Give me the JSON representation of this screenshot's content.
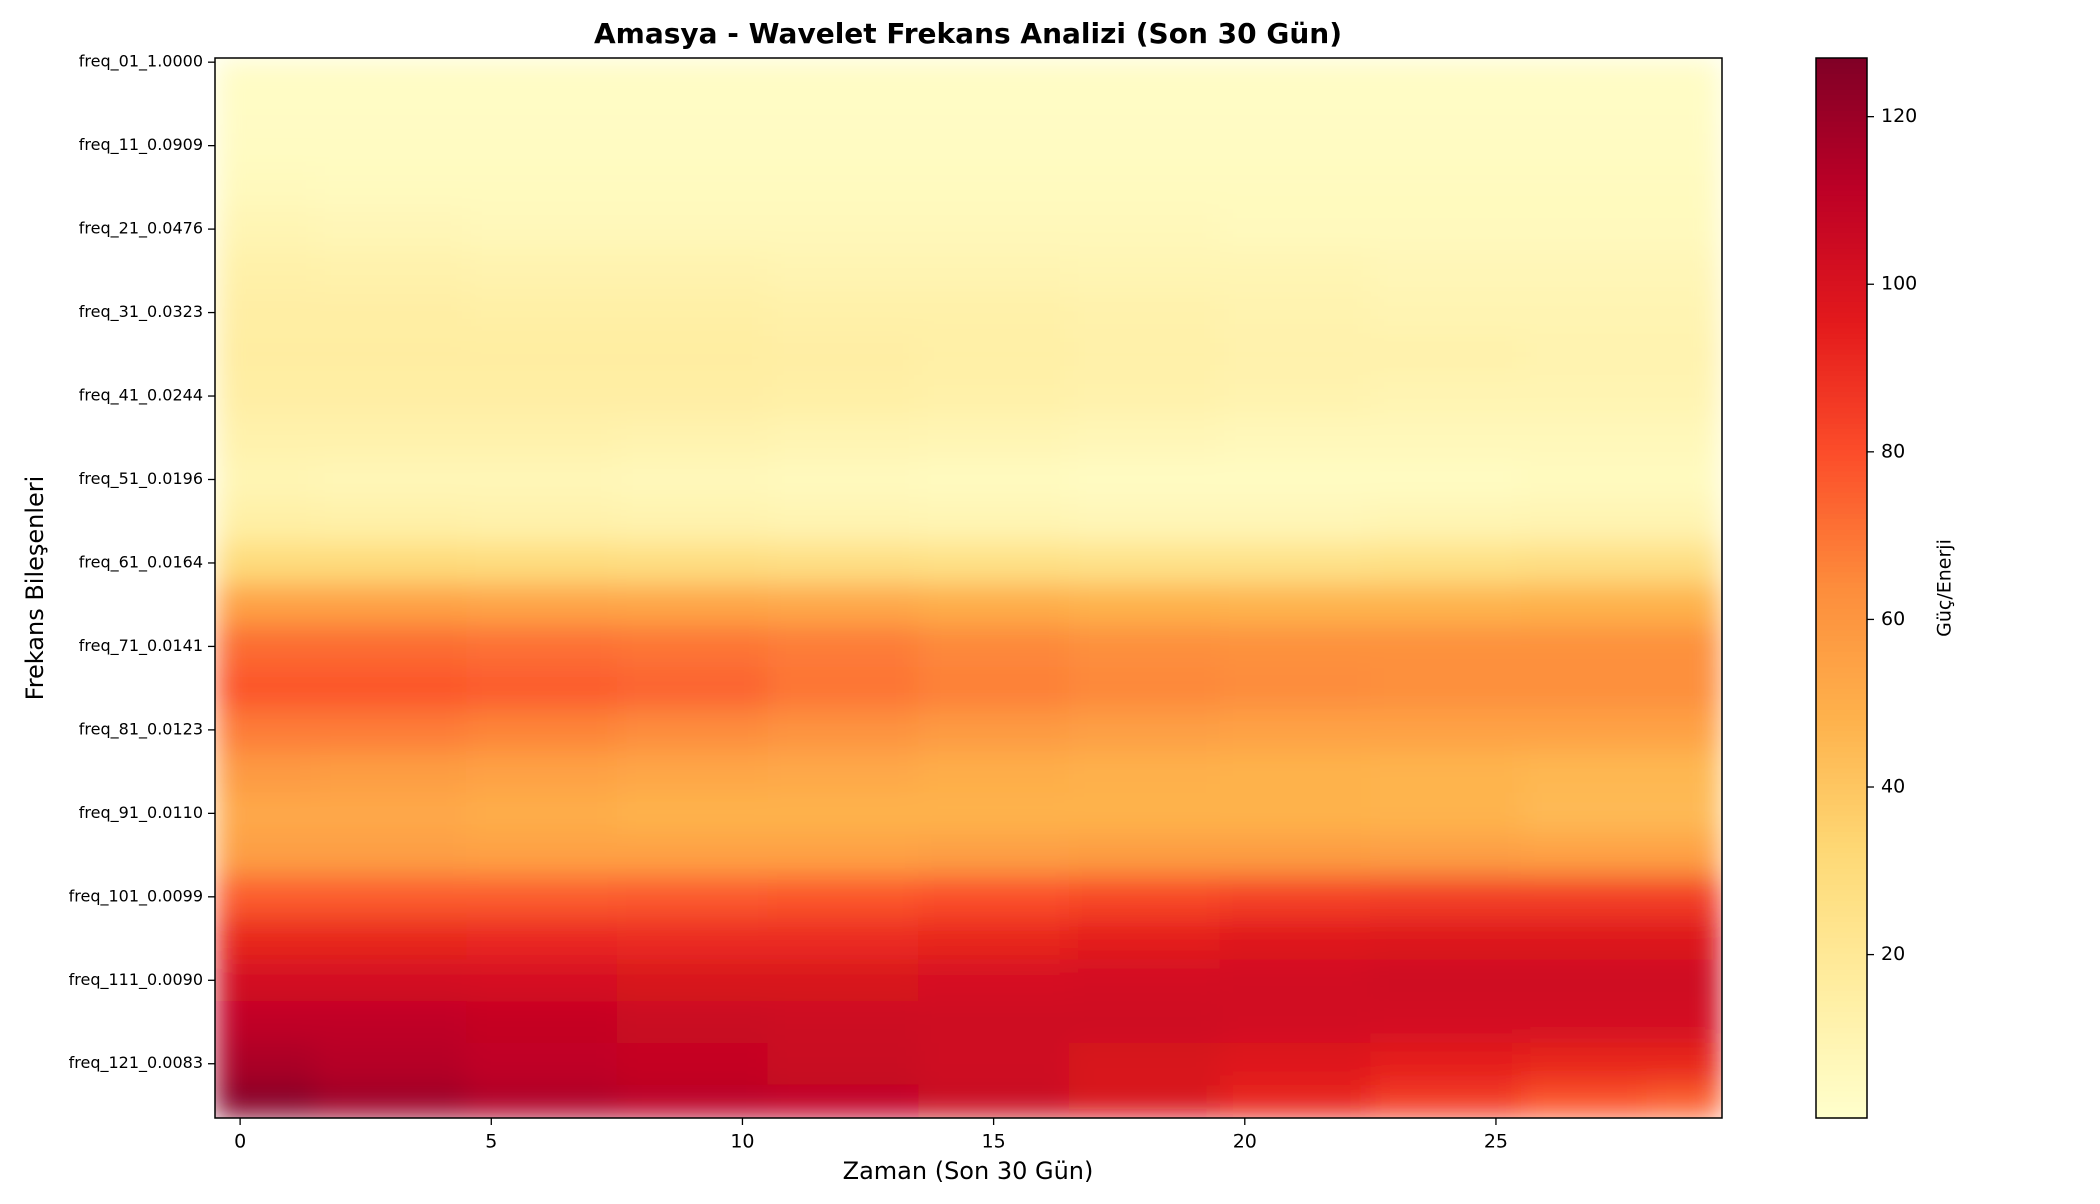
{
  "chart_data": {
    "type": "heatmap",
    "title": "Amasya - Wavelet Frekans Analizi (Son 30 Gün)",
    "x_label": "Zaman (Son 30 Gün)",
    "y_label": "Frekans Bileşenleri",
    "colorbar_label": "Güç/Enerji",
    "colormap": "YlOrRd",
    "x": [
      0,
      3,
      6,
      9,
      12,
      15,
      18,
      21,
      24,
      27,
      29
    ],
    "y": [
      0,
      5,
      10,
      15,
      20,
      25,
      30,
      35,
      40,
      45,
      50,
      55,
      60,
      65,
      70,
      75,
      80,
      85,
      90,
      95,
      100,
      105,
      110,
      115,
      120,
      125
    ],
    "z": [
      [
        3,
        3,
        3,
        3,
        3,
        3,
        3,
        3,
        3,
        3,
        3
      ],
      [
        3,
        3,
        3,
        3,
        3,
        3,
        3,
        3,
        3,
        3,
        3
      ],
      [
        4,
        4,
        4,
        4,
        4,
        4,
        4,
        4,
        4,
        4,
        4
      ],
      [
        6,
        5,
        5,
        5,
        5,
        5,
        5,
        5,
        5,
        5,
        5
      ],
      [
        9,
        8,
        7,
        7,
        7,
        7,
        7,
        6,
        6,
        6,
        6
      ],
      [
        13,
        12,
        11,
        11,
        10,
        10,
        9,
        9,
        8,
        8,
        8
      ],
      [
        15,
        15,
        14,
        14,
        13,
        13,
        12,
        11,
        10,
        10,
        10
      ],
      [
        16,
        16,
        16,
        16,
        15,
        14,
        13,
        12,
        12,
        11,
        11
      ],
      [
        15,
        15,
        15,
        15,
        14,
        13,
        12,
        11,
        10,
        10,
        10
      ],
      [
        12,
        12,
        12,
        11,
        10,
        9,
        8,
        7,
        7,
        7,
        7
      ],
      [
        9,
        8,
        8,
        7,
        6,
        5,
        4,
        4,
        4,
        5,
        5
      ],
      [
        14,
        13,
        12,
        11,
        10,
        9,
        8,
        8,
        9,
        10,
        10
      ],
      [
        30,
        30,
        29,
        28,
        27,
        26,
        25,
        25,
        26,
        27,
        27
      ],
      [
        55,
        55,
        54,
        53,
        52,
        50,
        48,
        47,
        47,
        48,
        48
      ],
      [
        72,
        72,
        71,
        70,
        68,
        65,
        63,
        62,
        62,
        62,
        62
      ],
      [
        78,
        78,
        76,
        74,
        70,
        67,
        65,
        64,
        63,
        63,
        63
      ],
      [
        68,
        68,
        66,
        64,
        61,
        58,
        56,
        55,
        55,
        55,
        55
      ],
      [
        58,
        57,
        55,
        53,
        52,
        50,
        49,
        48,
        47,
        46,
        46
      ],
      [
        52,
        52,
        50,
        48,
        48,
        48,
        48,
        48,
        47,
        45,
        45
      ],
      [
        56,
        56,
        55,
        55,
        55,
        56,
        57,
        57,
        56,
        55,
        55
      ],
      [
        76,
        76,
        76,
        77,
        78,
        80,
        82,
        84,
        85,
        85,
        85
      ],
      [
        92,
        92,
        91,
        90,
        90,
        92,
        95,
        97,
        98,
        98,
        98
      ],
      [
        102,
        102,
        101,
        100,
        100,
        101,
        102,
        103,
        104,
        104,
        104
      ],
      [
        110,
        110,
        108,
        106,
        105,
        104,
        104,
        103,
        102,
        102,
        102
      ],
      [
        116,
        113,
        110,
        108,
        106,
        104,
        100,
        97,
        94,
        92,
        92
      ],
      [
        126,
        120,
        115,
        112,
        110,
        106,
        100,
        92,
        85,
        78,
        75
      ]
    ],
    "xlim": [
      -0.5,
      29.5
    ],
    "ylim": [
      -0.5,
      126.5
    ],
    "xticks": [
      0,
      5,
      10,
      15,
      20,
      25
    ],
    "yticks": [
      {
        "value": 0,
        "label": "freq_01_1.0000"
      },
      {
        "value": 10,
        "label": "freq_11_0.0909"
      },
      {
        "value": 20,
        "label": "freq_21_0.0476"
      },
      {
        "value": 30,
        "label": "freq_31_0.0323"
      },
      {
        "value": 40,
        "label": "freq_41_0.0244"
      },
      {
        "value": 50,
        "label": "freq_51_0.0196"
      },
      {
        "value": 60,
        "label": "freq_61_0.0164"
      },
      {
        "value": 70,
        "label": "freq_71_0.0141"
      },
      {
        "value": 80,
        "label": "freq_81_0.0123"
      },
      {
        "value": 90,
        "label": "freq_91_0.0110"
      },
      {
        "value": 100,
        "label": "freq_101_0.0099"
      },
      {
        "value": 110,
        "label": "freq_111_0.0090"
      },
      {
        "value": 120,
        "label": "freq_121_0.0083"
      }
    ],
    "clim": [
      0.5,
      127
    ],
    "cticks": [
      20,
      40,
      60,
      80,
      100,
      120
    ]
  }
}
